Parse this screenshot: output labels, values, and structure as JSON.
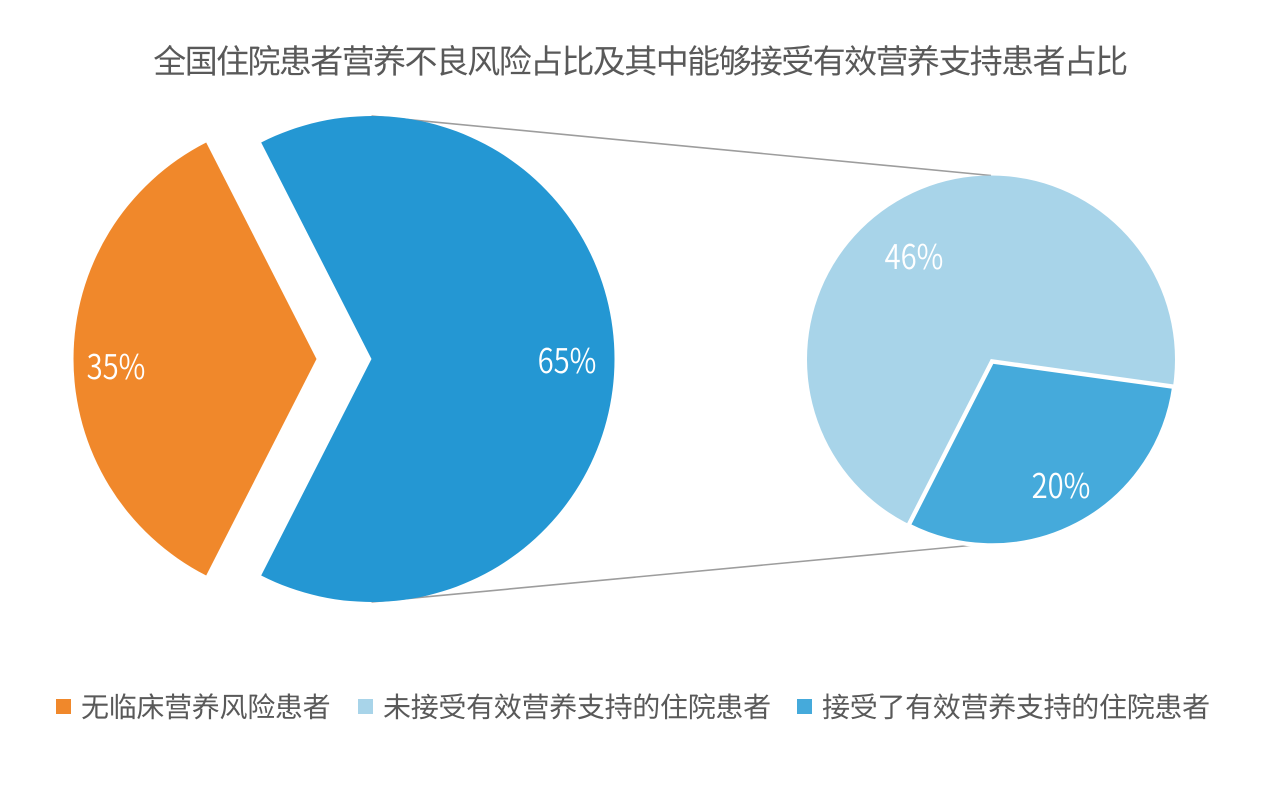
{
  "title": "全国住院患者营养不良风险占比及其中能够接受有效营养支持患者占比",
  "colors": {
    "orange": "#f0882b",
    "blue": "#2497d3",
    "light_blue": "#a8d4e9",
    "mid_blue": "#45aadb",
    "text_gray": "#595959",
    "label_white": "#ffffff",
    "connector_gray": "#9d9d9d",
    "background": "#ffffff"
  },
  "chart_data": {
    "type": "pie",
    "subtype": "pie-of-pie",
    "title": "全国住院患者营养不良风险占比及其中能够接受有效营养支持患者占比",
    "main_pie": {
      "slices": [
        {
          "label": "无临床营养风险患者",
          "value": 35,
          "display": "35%",
          "color": "#f0882b"
        },
        {
          "label": "住院患者营养不良风险占比",
          "value": 65,
          "display": "65%",
          "color": "#2497d3"
        }
      ]
    },
    "sub_pie": {
      "parent_value": 65,
      "slices": [
        {
          "label": "未接受有效营养支持的住院患者",
          "value": 46,
          "display": "46%",
          "color": "#a8d4e9"
        },
        {
          "label": "接受了有效营养支持的住院患者",
          "value": 20,
          "display": "20%",
          "color": "#45aadb"
        }
      ]
    },
    "legend_position": "bottom",
    "grid": false
  },
  "legend": {
    "items": [
      {
        "label": "无临床营养风险患者",
        "color": "#f0882b"
      },
      {
        "label": "未接受有效营养支持的住院患者",
        "color": "#a8d4e9"
      },
      {
        "label": "接受了有效营养支持的住院患者",
        "color": "#45aadb"
      }
    ]
  }
}
